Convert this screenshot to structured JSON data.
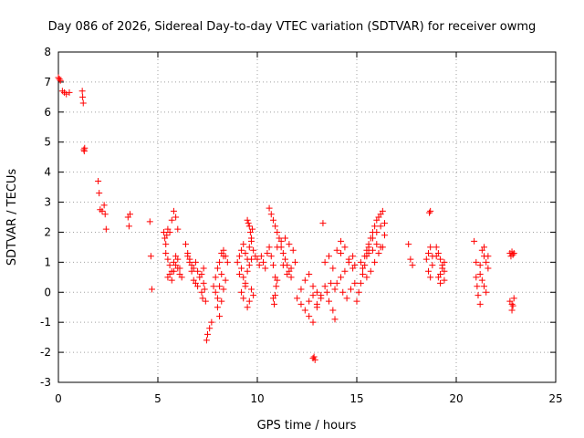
{
  "chart_data": {
    "type": "scatter",
    "title": "Day 086 of 2026, Sidereal Day-to-day VTEC variation (SDTVAR) for receiver owmg",
    "xlabel": "GPS time / hours",
    "ylabel": "SDTVAR / TECUs",
    "xlim": [
      0,
      25
    ],
    "ylim": [
      -3,
      8
    ],
    "xticks": [
      0,
      5,
      10,
      15,
      20,
      25
    ],
    "xtick_labels": [
      "0",
      "5",
      "10",
      "15",
      "20",
      "25"
    ],
    "yticks": [
      -3,
      -2,
      -1,
      0,
      1,
      2,
      3,
      4,
      5,
      6,
      7,
      8
    ],
    "ytick_labels": [
      "-3",
      "-2",
      "-1",
      "0",
      "1",
      "2",
      "3",
      "4",
      "5",
      "6",
      "7",
      "8"
    ],
    "grid": true,
    "marker": "plus",
    "color": "#ff0000",
    "series": [
      {
        "name": "SDTVAR",
        "x": [
          0.0,
          0.05,
          0.1,
          0.2,
          0.3,
          0.4,
          0.55,
          1.2,
          1.22,
          1.25,
          1.28,
          1.3,
          1.32,
          2.0,
          2.05,
          2.1,
          2.2,
          2.3,
          2.35,
          2.4,
          3.5,
          3.55,
          3.6,
          4.6,
          4.65,
          4.7,
          5.3,
          5.35,
          5.4,
          5.45,
          5.5,
          5.6,
          5.7,
          5.8,
          5.9,
          6.0,
          5.4,
          5.5,
          5.6,
          5.7,
          5.8,
          5.9,
          6.0,
          6.1,
          5.5,
          5.6,
          5.7,
          5.8,
          5.9,
          6.0,
          6.1,
          6.2,
          6.4,
          6.5,
          6.6,
          6.7,
          6.8,
          6.9,
          7.0,
          7.1,
          7.2,
          7.3,
          6.5,
          6.6,
          6.7,
          6.8,
          6.9,
          7.0,
          7.2,
          7.25,
          7.3,
          7.35,
          7.4,
          7.45,
          7.5,
          7.6,
          7.7,
          7.8,
          7.9,
          8.0,
          8.1,
          8.2,
          8.3,
          8.4,
          8.5,
          7.9,
          8.0,
          8.1,
          8.2,
          8.3,
          8.4,
          8.0,
          8.1,
          8.2,
          8.3,
          9.0,
          9.1,
          9.2,
          9.3,
          9.4,
          9.5,
          9.6,
          9.7,
          9.8,
          9.9,
          9.1,
          9.2,
          9.3,
          9.4,
          9.5,
          9.6,
          9.7,
          9.2,
          9.3,
          9.4,
          9.5,
          9.6,
          9.7,
          9.8,
          9.5,
          9.55,
          9.6,
          9.65,
          9.7,
          9.75,
          10.0,
          10.1,
          10.2,
          10.3,
          10.4,
          10.5,
          10.6,
          10.7,
          10.8,
          10.9,
          10.6,
          10.7,
          10.8,
          10.9,
          11.0,
          11.1,
          11.2,
          11.3,
          11.4,
          11.5,
          11.6,
          11.7,
          10.8,
          10.85,
          10.9,
          10.95,
          11.0,
          11.0,
          11.2,
          11.4,
          11.6,
          11.8,
          11.3,
          11.5,
          11.7,
          11.9,
          12.0,
          12.2,
          12.4,
          12.6,
          12.8,
          12.2,
          12.4,
          12.6,
          12.8,
          13.0,
          12.6,
          12.8,
          13.0,
          13.2,
          12.8,
          12.85,
          12.9,
          13.0,
          13.2,
          13.4,
          13.6,
          13.8,
          13.9,
          13.4,
          13.6,
          13.8,
          14.0,
          14.2,
          13.3,
          13.5,
          13.7,
          13.9,
          14.0,
          14.2,
          14.4,
          14.6,
          14.8,
          14.9,
          14.2,
          14.4,
          14.6,
          14.8,
          14.3,
          14.5,
          14.7,
          14.9,
          15.0,
          15.1,
          15.2,
          15.3,
          15.4,
          15.5,
          15.6,
          15.7,
          15.8,
          15.9,
          16.0,
          16.1,
          16.2,
          16.3,
          16.4,
          15.2,
          15.3,
          15.4,
          15.5,
          15.6,
          15.8,
          16.0,
          16.2,
          16.4,
          15.5,
          15.7,
          15.9,
          16.1,
          16.3,
          15.6,
          15.8,
          16.0,
          16.2,
          17.6,
          17.7,
          17.8,
          18.5,
          18.6,
          18.7,
          18.8,
          18.6,
          18.7,
          18.8,
          18.65,
          18.7,
          19.0,
          19.1,
          19.2,
          19.3,
          19.4,
          19.1,
          19.2,
          19.3,
          19.4,
          19.0,
          19.2,
          19.4,
          20.9,
          21.0,
          21.0,
          21.05,
          21.1,
          21.2,
          21.3,
          21.4,
          21.5,
          21.6,
          21.2,
          21.3,
          21.4,
          21.5,
          21.2,
          21.4,
          21.6,
          22.7,
          22.75,
          22.8,
          22.85,
          22.9,
          22.7,
          22.8,
          22.9,
          22.8,
          22.85
        ],
        "y": [
          7.15,
          7.1,
          7.05,
          6.7,
          6.65,
          6.6,
          6.65,
          6.7,
          6.5,
          6.3,
          4.75,
          4.7,
          4.8,
          3.7,
          3.3,
          2.75,
          2.7,
          2.9,
          2.6,
          2.1,
          2.5,
          2.2,
          2.6,
          2.35,
          1.2,
          0.1,
          2.0,
          1.8,
          1.6,
          1.9,
          2.1,
          2.0,
          2.4,
          2.7,
          2.5,
          2.1,
          1.3,
          1.1,
          0.9,
          0.7,
          1.0,
          1.2,
          0.8,
          0.6,
          0.5,
          0.6,
          0.4,
          0.7,
          0.9,
          1.1,
          0.8,
          0.5,
          1.6,
          1.3,
          1.1,
          0.9,
          0.8,
          1.0,
          0.7,
          0.5,
          0.6,
          0.8,
          1.2,
          1.0,
          0.7,
          0.4,
          0.3,
          0.2,
          0.0,
          -0.2,
          0.3,
          0.1,
          -0.3,
          -1.6,
          -1.4,
          -1.2,
          -1.0,
          0.2,
          0.5,
          0.8,
          1.0,
          1.3,
          1.4,
          1.2,
          1.0,
          0.0,
          -0.2,
          0.2,
          0.6,
          1.2,
          0.4,
          -0.5,
          -0.8,
          -0.3,
          0.1,
          1.0,
          1.2,
          1.4,
          1.6,
          1.3,
          1.1,
          1.5,
          1.7,
          1.4,
          1.2,
          0.6,
          0.8,
          0.5,
          0.3,
          0.7,
          0.9,
          1.1,
          0.0,
          -0.2,
          0.2,
          -0.5,
          -0.3,
          0.1,
          -0.1,
          2.4,
          2.3,
          2.2,
          2.0,
          1.8,
          2.1,
          1.1,
          0.9,
          1.2,
          1.0,
          0.8,
          1.3,
          1.5,
          1.2,
          0.9,
          0.5,
          2.8,
          2.6,
          2.4,
          2.2,
          2.0,
          1.8,
          1.5,
          1.3,
          1.1,
          0.9,
          0.7,
          0.5,
          -0.2,
          -0.4,
          -0.1,
          0.2,
          0.4,
          1.5,
          1.7,
          1.8,
          1.6,
          1.4,
          0.9,
          0.6,
          0.8,
          1.0,
          -0.2,
          0.1,
          0.4,
          0.6,
          0.2,
          -0.4,
          -0.6,
          -0.3,
          -0.1,
          0.0,
          -0.8,
          -1.0,
          -0.5,
          -0.2,
          -2.2,
          -2.15,
          -2.25,
          -0.4,
          -0.1,
          0.2,
          -0.3,
          -0.6,
          -0.9,
          1.0,
          1.2,
          0.8,
          1.4,
          1.7,
          2.3,
          0.0,
          0.3,
          0.1,
          0.3,
          0.5,
          0.7,
          1.0,
          1.2,
          0.9,
          1.3,
          1.5,
          1.1,
          0.8,
          0.0,
          -0.2,
          0.1,
          0.3,
          -0.3,
          0.0,
          0.3,
          0.6,
          0.9,
          1.2,
          1.5,
          1.8,
          2.0,
          2.2,
          2.4,
          2.5,
          2.6,
          2.7,
          2.3,
          1.0,
          0.8,
          1.2,
          1.4,
          1.6,
          1.8,
          2.0,
          2.2,
          1.9,
          0.5,
          0.7,
          1.0,
          1.3,
          1.5,
          1.3,
          1.4,
          1.6,
          1.5,
          1.6,
          1.1,
          0.9,
          1.1,
          1.3,
          1.5,
          0.9,
          0.7,
          0.5,
          1.2,
          2.65,
          2.7,
          1.5,
          1.3,
          1.1,
          0.9,
          0.7,
          0.5,
          0.3,
          0.8,
          1.0,
          1.2,
          0.6,
          0.4,
          1.7,
          1.0,
          0.5,
          0.2,
          -0.1,
          -0.4,
          1.4,
          1.2,
          1.0,
          0.8,
          0.6,
          0.4,
          0.2,
          0.0,
          0.9,
          1.5,
          1.2,
          1.3,
          1.2,
          1.35,
          1.25,
          1.3,
          -0.3,
          -0.4,
          -0.2,
          -0.6,
          -0.45
        ]
      }
    ]
  }
}
